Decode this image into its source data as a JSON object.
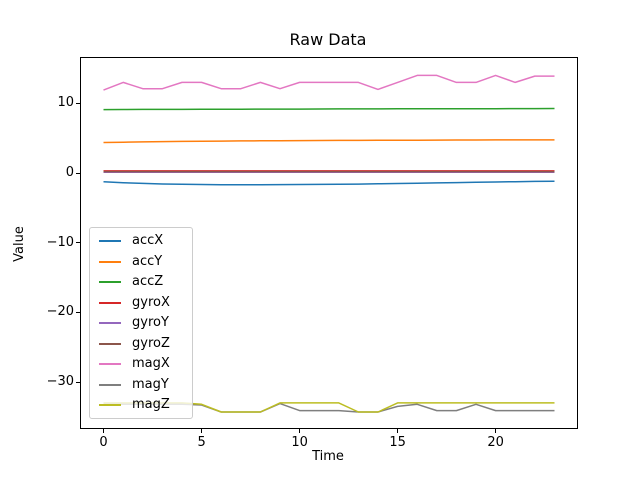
{
  "figure": {
    "background": "#ffffff"
  },
  "chart_data": {
    "type": "line",
    "title": "Raw Data",
    "xlabel": "Time",
    "ylabel": "Value",
    "grid": false,
    "legend_position": "center-left",
    "xlim": [
      -1.15,
      24.15
    ],
    "ylim": [
      -36.6,
      16.5
    ],
    "xticks": [
      0,
      5,
      10,
      15,
      20
    ],
    "yticks": [
      10,
      0,
      -10,
      -20,
      -30
    ],
    "x": [
      0,
      1,
      2,
      3,
      4,
      5,
      6,
      7,
      8,
      9,
      10,
      11,
      12,
      13,
      14,
      15,
      16,
      17,
      18,
      19,
      20,
      21,
      22,
      23
    ],
    "series": [
      {
        "name": "accX",
        "color": "#1f77b4",
        "values": [
          -1.25,
          -1.4,
          -1.5,
          -1.58,
          -1.63,
          -1.66,
          -1.68,
          -1.68,
          -1.68,
          -1.67,
          -1.66,
          -1.64,
          -1.62,
          -1.59,
          -1.55,
          -1.51,
          -1.47,
          -1.42,
          -1.38,
          -1.33,
          -1.29,
          -1.25,
          -1.21,
          -1.18
        ]
      },
      {
        "name": "accY",
        "color": "#ff7f0e",
        "values": [
          4.38,
          4.42,
          4.46,
          4.5,
          4.53,
          4.56,
          4.58,
          4.6,
          4.62,
          4.63,
          4.65,
          4.66,
          4.67,
          4.68,
          4.69,
          4.7,
          4.71,
          4.72,
          4.73,
          4.73,
          4.74,
          4.74,
          4.75,
          4.75
        ]
      },
      {
        "name": "accZ",
        "color": "#2ca02c",
        "values": [
          9.1,
          9.11,
          9.12,
          9.12,
          9.13,
          9.14,
          9.15,
          9.15,
          9.16,
          9.17,
          9.17,
          9.18,
          9.19,
          9.19,
          9.2,
          9.21,
          9.21,
          9.22,
          9.22,
          9.23,
          9.23,
          9.24,
          9.24,
          9.25
        ]
      },
      {
        "name": "gyroX",
        "color": "#d62728",
        "values": [
          0.3,
          0.3,
          0.3,
          0.3,
          0.3,
          0.3,
          0.3,
          0.3,
          0.3,
          0.3,
          0.3,
          0.3,
          0.3,
          0.3,
          0.3,
          0.3,
          0.3,
          0.3,
          0.3,
          0.3,
          0.3,
          0.3,
          0.3,
          0.3
        ]
      },
      {
        "name": "gyroY",
        "color": "#9467bd",
        "values": [
          0.1,
          0.1,
          0.1,
          0.1,
          0.1,
          0.1,
          0.1,
          0.1,
          0.1,
          0.1,
          0.1,
          0.1,
          0.1,
          0.1,
          0.1,
          0.1,
          0.1,
          0.1,
          0.1,
          0.1,
          0.1,
          0.1,
          0.1,
          0.1
        ]
      },
      {
        "name": "gyroZ",
        "color": "#8c564b",
        "values": [
          0.2,
          0.2,
          0.2,
          0.2,
          0.2,
          0.2,
          0.2,
          0.2,
          0.2,
          0.2,
          0.2,
          0.2,
          0.2,
          0.2,
          0.2,
          0.2,
          0.2,
          0.2,
          0.2,
          0.2,
          0.2,
          0.2,
          0.2,
          0.2
        ]
      },
      {
        "name": "magX",
        "color": "#e377c2",
        "values": [
          11.9,
          13.0,
          12.1,
          12.1,
          13.0,
          13.0,
          12.1,
          12.1,
          13.0,
          12.1,
          13.0,
          13.0,
          13.0,
          13.0,
          12.0,
          13.0,
          14.0,
          14.0,
          13.0,
          13.0,
          14.0,
          13.0,
          13.9,
          13.9
        ]
      },
      {
        "name": "magY",
        "color": "#7f7f7f",
        "values": [
          -33.2,
          -33.2,
          -33.2,
          -33.2,
          -33.2,
          -33.3,
          -34.3,
          -34.3,
          -34.3,
          -33.1,
          -34.1,
          -34.1,
          -34.1,
          -34.3,
          -34.3,
          -33.5,
          -33.2,
          -34.1,
          -34.1,
          -33.2,
          -34.1,
          -34.1,
          -34.1,
          -34.1
        ]
      },
      {
        "name": "magZ",
        "color": "#bcbd22",
        "values": [
          -33.0,
          -33.0,
          -33.0,
          -33.0,
          -33.0,
          -33.2,
          -34.3,
          -34.3,
          -34.3,
          -33.0,
          -33.0,
          -33.0,
          -33.0,
          -34.3,
          -34.3,
          -33.0,
          -33.0,
          -33.0,
          -33.0,
          -33.0,
          -33.0,
          -33.0,
          -33.0,
          -33.0
        ]
      }
    ]
  }
}
